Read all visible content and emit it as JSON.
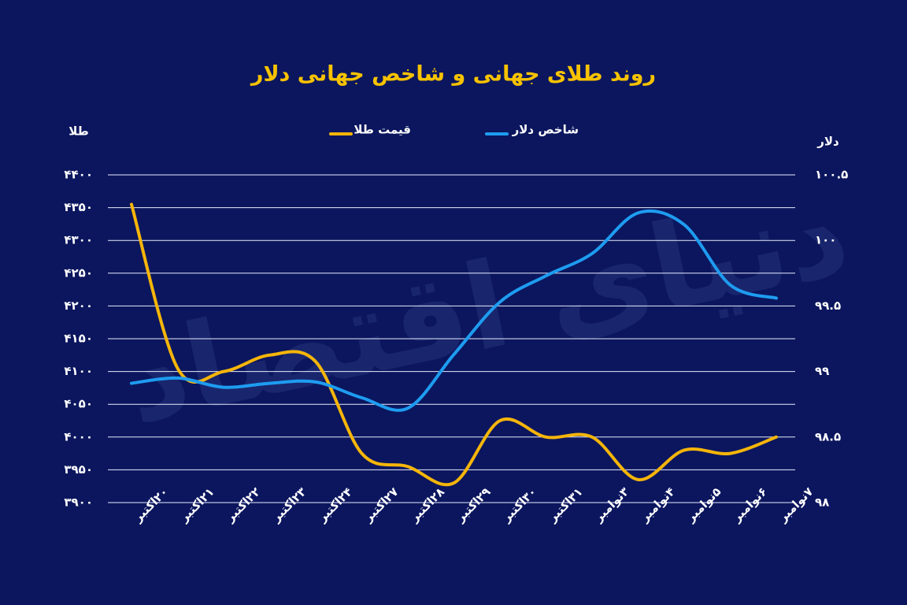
{
  "chart_data": {
    "type": "line",
    "title": "روند طلای جهانی و شاخص جهانی دلار",
    "y_label": "طلا",
    "y2_label": "دلار",
    "watermark": "دنیای اقتصاد",
    "categories": [
      "۲۰اکتبر",
      "۲۱اکتبر",
      "۲۲اکتبر",
      "۲۳اکتبر",
      "۲۴اکتبر",
      "۲۷اکتبر",
      "۲۸اکتبر",
      "۲۹اکتبر",
      "۳۰اکتبر",
      "۳۱اکتبر",
      "۳نوامبر",
      "۴نوامبر",
      "۵نوامبر",
      "۶نوامبر",
      "۷نوامبر"
    ],
    "series": [
      {
        "name": "قیمت طلا",
        "color": "#f5b50a",
        "values": [
          4355,
          4105,
          4100,
          4125,
          4115,
          3975,
          3955,
          3930,
          4025,
          4000,
          4000,
          3935,
          3980,
          3975,
          4000
        ]
      },
      {
        "name": "شاخص دلار",
        "color": "#1e9cf0",
        "axis": "y2",
        "values": [
          98.91,
          98.95,
          98.88,
          98.91,
          98.92,
          98.8,
          98.72,
          99.13,
          99.53,
          99.73,
          99.9,
          100.21,
          100.12,
          99.66,
          99.56
        ]
      }
    ],
    "ylim": [
      3900,
      4400
    ],
    "yticks": [
      {
        "value": 3900,
        "label": "۳۹۰۰"
      },
      {
        "value": 3950,
        "label": "۳۹۵۰"
      },
      {
        "value": 4000,
        "label": "۴۰۰۰"
      },
      {
        "value": 4050,
        "label": "۴۰۵۰"
      },
      {
        "value": 4100,
        "label": "۴۱۰۰"
      },
      {
        "value": 4150,
        "label": "۴۱۵۰"
      },
      {
        "value": 4200,
        "label": "۴۲۰۰"
      },
      {
        "value": 4250,
        "label": "۴۲۵۰"
      },
      {
        "value": 4300,
        "label": "۴۳۰۰"
      },
      {
        "value": 4350,
        "label": "۴۳۵۰"
      },
      {
        "value": 4400,
        "label": "۴۴۰۰"
      }
    ],
    "y2lim": [
      98,
      100.5
    ],
    "y2ticks": [
      {
        "value": 98,
        "label": "۹۸"
      },
      {
        "value": 98.5,
        "label": "۹۸.۵"
      },
      {
        "value": 99,
        "label": "۹۹"
      },
      {
        "value": 99.5,
        "label": "۹۹.۵"
      },
      {
        "value": 100,
        "label": "۱۰۰"
      },
      {
        "value": 100.5,
        "label": "۱۰۰.۵"
      }
    ],
    "grid": true
  }
}
